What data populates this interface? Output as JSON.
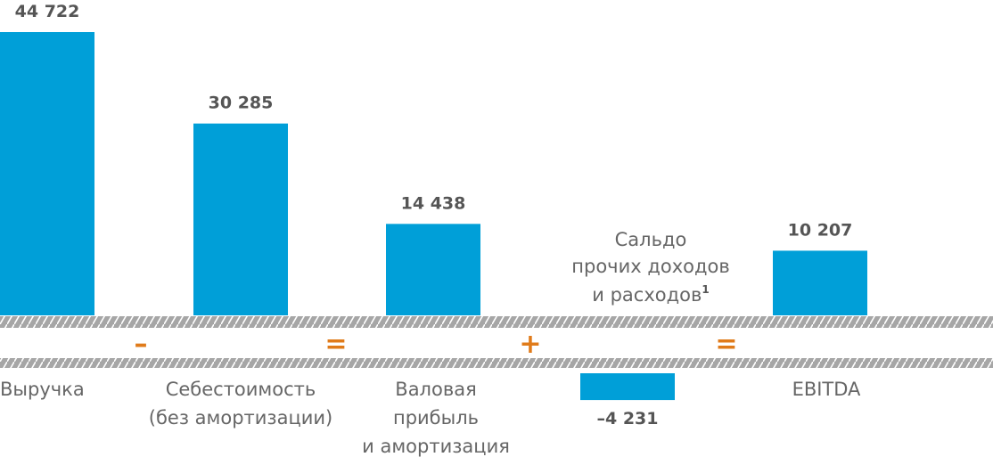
{
  "chart_data": {
    "type": "bar",
    "categories": [
      "Выручка",
      "Себестоимость (без амортизации)",
      "Валовая прибыль и амортизация",
      "Сальдо прочих доходов и расходов",
      "EBITDA"
    ],
    "values": [
      44722,
      30285,
      14438,
      -4231,
      10207
    ],
    "value_labels": [
      "44 722",
      "30 285",
      "14 438",
      "–4 231",
      "10 207"
    ],
    "category_lines": [
      [
        "Выручка"
      ],
      [
        "Себестоимость",
        "(без амортизации)"
      ],
      [
        "Валовая",
        "прибыль",
        "и амортизация"
      ],
      [
        "Сальдо",
        "прочих доходов",
        "и расходов"
      ],
      [
        "EBITDA"
      ]
    ],
    "footnote_marker": "1",
    "operators": [
      "–",
      "=",
      "+",
      "="
    ],
    "colors": {
      "bar": "#009fd8",
      "operator": "#e07b1a",
      "axis_band": "#a6a6a6",
      "text": "#666666",
      "value_text": "#555555"
    }
  }
}
